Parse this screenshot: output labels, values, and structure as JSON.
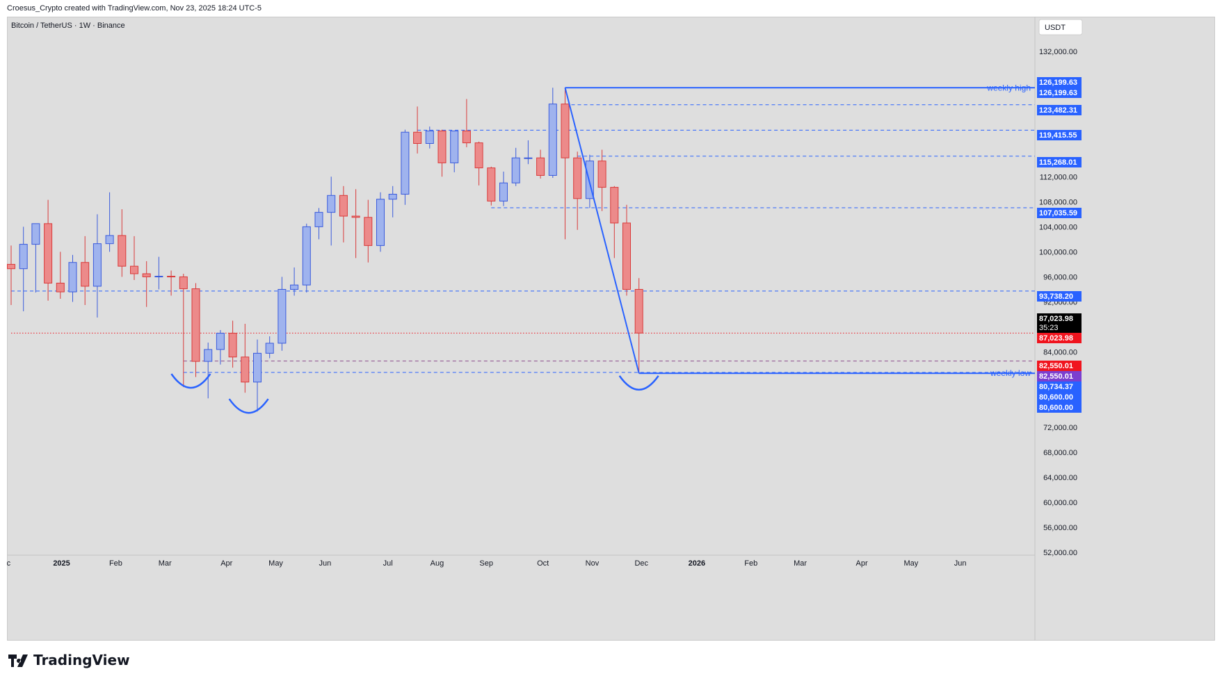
{
  "header": {
    "attribution": "Croesus_Crypto created with TradingView.com, Nov 23, 2025 18:24 UTC-5"
  },
  "chart_title": "Bitcoin / TetherUS · 1W · Binance",
  "currency_button": "USDT",
  "footer_logo_text": "TradingView",
  "colors": {
    "background": "#dedede",
    "up_candle_fill": "#9fb3ee",
    "up_candle_border": "#3a5bdc",
    "down_candle_fill": "#ec8a8a",
    "down_candle_border": "#d93a3a",
    "line_blue": "#2962ff",
    "label_blue": "#2962ff",
    "label_red": "#f0141e",
    "label_black": "#000000",
    "label_purple": "#7b3fcf"
  },
  "chart_data": {
    "type": "candlestick",
    "interval": "1W",
    "symbol": "Bitcoin / TetherUS",
    "exchange": "Binance",
    "y_ticks": [
      132000,
      128000,
      124000,
      120000,
      116000,
      112000,
      108000,
      104000,
      100000,
      96000,
      92000,
      88000,
      84000,
      80000,
      76000,
      72000,
      68000,
      64000,
      60000,
      56000,
      52000
    ],
    "y_tick_labels": [
      "132,000.00",
      "",
      "",
      "",
      "",
      "112,000.00",
      "108,000.00",
      "104,000.00",
      "100,000.00",
      "96,000.00",
      "92,000.00",
      "",
      "84,000.00",
      "",
      "",
      "72,000.00",
      "68,000.00",
      "64,000.00",
      "60,000.00",
      "56,000.00",
      "52,000.00"
    ],
    "x_labels": [
      {
        "label": "Dec",
        "bold": false,
        "week": -0.6
      },
      {
        "label": "2025",
        "bold": true,
        "week": 4.1
      },
      {
        "label": "Feb",
        "bold": false,
        "week": 8.5
      },
      {
        "label": "Mar",
        "bold": false,
        "week": 12.5
      },
      {
        "label": "Apr",
        "bold": false,
        "week": 17.5
      },
      {
        "label": "May",
        "bold": false,
        "week": 21.5
      },
      {
        "label": "Jun",
        "bold": false,
        "week": 25.5
      },
      {
        "label": "Jul",
        "bold": false,
        "week": 30.6
      },
      {
        "label": "Aug",
        "bold": false,
        "week": 34.6
      },
      {
        "label": "Sep",
        "bold": false,
        "week": 38.6
      },
      {
        "label": "Oct",
        "bold": false,
        "week": 43.2
      },
      {
        "label": "Nov",
        "bold": false,
        "week": 47.2
      },
      {
        "label": "Dec",
        "bold": false,
        "week": 51.2
      },
      {
        "label": "2026",
        "bold": true,
        "week": 55.7
      },
      {
        "label": "Feb",
        "bold": false,
        "week": 60.1
      },
      {
        "label": "Mar",
        "bold": false,
        "week": 64.1
      },
      {
        "label": "Apr",
        "bold": false,
        "week": 69.1
      },
      {
        "label": "May",
        "bold": false,
        "week": 73.1
      },
      {
        "label": "Jun",
        "bold": false,
        "week": 77.1
      }
    ],
    "candles": [
      {
        "o": 98000,
        "h": 101000,
        "l": 91500,
        "c": 97300
      },
      {
        "o": 97300,
        "h": 104000,
        "l": 90500,
        "c": 101200
      },
      {
        "o": 101200,
        "h": 104500,
        "l": 93500,
        "c": 104500
      },
      {
        "o": 104500,
        "h": 108300,
        "l": 92200,
        "c": 95000
      },
      {
        "o": 95000,
        "h": 100000,
        "l": 92500,
        "c": 93600
      },
      {
        "o": 93600,
        "h": 99500,
        "l": 92000,
        "c": 98300
      },
      {
        "o": 98300,
        "h": 102500,
        "l": 91500,
        "c": 94500
      },
      {
        "o": 94500,
        "h": 106000,
        "l": 89500,
        "c": 101300
      },
      {
        "o": 101300,
        "h": 109500,
        "l": 100000,
        "c": 102600
      },
      {
        "o": 102600,
        "h": 106800,
        "l": 96000,
        "c": 97700
      },
      {
        "o": 97700,
        "h": 102500,
        "l": 95500,
        "c": 96500
      },
      {
        "o": 96500,
        "h": 98500,
        "l": 91200,
        "c": 96000
      },
      {
        "o": 96000,
        "h": 99200,
        "l": 94000,
        "c": 96100
      },
      {
        "o": 96100,
        "h": 97000,
        "l": 93000,
        "c": 96000
      },
      {
        "o": 96000,
        "h": 96500,
        "l": 78400,
        "c": 94100
      },
      {
        "o": 94100,
        "h": 95000,
        "l": 80000,
        "c": 82500
      },
      {
        "o": 82500,
        "h": 85500,
        "l": 76600,
        "c": 84400
      },
      {
        "o": 84400,
        "h": 87500,
        "l": 82000,
        "c": 87000
      },
      {
        "o": 87000,
        "h": 89000,
        "l": 81500,
        "c": 83200
      },
      {
        "o": 83200,
        "h": 88500,
        "l": 77500,
        "c": 79200
      },
      {
        "o": 79200,
        "h": 86000,
        "l": 74500,
        "c": 83800
      },
      {
        "o": 83800,
        "h": 86500,
        "l": 83000,
        "c": 85400
      },
      {
        "o": 85400,
        "h": 96000,
        "l": 84200,
        "c": 94000
      },
      {
        "o": 94000,
        "h": 97500,
        "l": 93000,
        "c": 94700
      },
      {
        "o": 94700,
        "h": 104500,
        "l": 93500,
        "c": 104000
      },
      {
        "o": 104000,
        "h": 107000,
        "l": 102000,
        "c": 106300
      },
      {
        "o": 106300,
        "h": 112000,
        "l": 101000,
        "c": 109000
      },
      {
        "o": 109000,
        "h": 110500,
        "l": 101500,
        "c": 105700
      },
      {
        "o": 105700,
        "h": 110000,
        "l": 99000,
        "c": 105500
      },
      {
        "o": 105500,
        "h": 108300,
        "l": 98300,
        "c": 101000
      },
      {
        "o": 101000,
        "h": 109500,
        "l": 100000,
        "c": 108400
      },
      {
        "o": 108400,
        "h": 110500,
        "l": 105500,
        "c": 109200
      },
      {
        "o": 109200,
        "h": 119500,
        "l": 107500,
        "c": 119100
      },
      {
        "o": 119100,
        "h": 123200,
        "l": 115700,
        "c": 117300
      },
      {
        "o": 117300,
        "h": 120000,
        "l": 116500,
        "c": 119300
      },
      {
        "o": 119300,
        "h": 119500,
        "l": 112000,
        "c": 114200
      },
      {
        "o": 114200,
        "h": 119300,
        "l": 112700,
        "c": 119300
      },
      {
        "o": 119300,
        "h": 124400,
        "l": 116700,
        "c": 117400
      },
      {
        "o": 117400,
        "h": 117600,
        "l": 110600,
        "c": 113400
      },
      {
        "o": 113400,
        "h": 113600,
        "l": 107400,
        "c": 108100
      },
      {
        "o": 108100,
        "h": 112800,
        "l": 107300,
        "c": 111000
      },
      {
        "o": 111000,
        "h": 116600,
        "l": 110500,
        "c": 115000
      },
      {
        "o": 115000,
        "h": 117800,
        "l": 114000,
        "c": 115000
      },
      {
        "o": 115000,
        "h": 116300,
        "l": 111700,
        "c": 112200
      },
      {
        "o": 112200,
        "h": 126199.63,
        "l": 111800,
        "c": 123600
      },
      {
        "o": 123600,
        "h": 126199.63,
        "l": 102000,
        "c": 115000
      },
      {
        "o": 115000,
        "h": 116000,
        "l": 103500,
        "c": 108500
      },
      {
        "o": 108500,
        "h": 115500,
        "l": 107000,
        "c": 114500
      },
      {
        "o": 114500,
        "h": 116300,
        "l": 106500,
        "c": 110300
      },
      {
        "o": 110300,
        "h": 110500,
        "l": 99000,
        "c": 104600
      },
      {
        "o": 104600,
        "h": 107500,
        "l": 93000,
        "c": 94000
      },
      {
        "o": 94000,
        "h": 95800,
        "l": 80600,
        "c": 87024
      }
    ],
    "horizontal_levels": [
      {
        "price": 126199.63,
        "label": "126,199.63",
        "style": "solid",
        "color": "#2962ff",
        "start_week": 45,
        "text": "weekly high"
      },
      {
        "price": 123482.31,
        "label": "123,482.31",
        "style": "dashed",
        "color": "#2962ff",
        "start_week": 45
      },
      {
        "price": 119415.55,
        "label": "119,415.55",
        "style": "dashed",
        "color": "#2962ff",
        "start_week": 33
      },
      {
        "price": 115268.01,
        "label": "115,268.01",
        "style": "dashed",
        "color": "#2962ff",
        "start_week": 46
      },
      {
        "price": 107035.59,
        "label": "107,035.59",
        "style": "dashed",
        "color": "#2962ff",
        "start_week": 39
      },
      {
        "price": 93738.2,
        "label": "93,738.20",
        "style": "dashed",
        "color": "#2962ff",
        "start_week": 0
      },
      {
        "price": 87023.98,
        "label": "87,023.98",
        "style": "dotted",
        "color": "#f0141e",
        "start_week": 0
      },
      {
        "price": 82550.01,
        "label": "82,550.01",
        "style": "dashed",
        "color": "#8b4a8b",
        "start_week": 14
      },
      {
        "price": 80600.0,
        "label": "80,600.00",
        "style": "solid",
        "color": "#2962ff",
        "start_week": 51,
        "text": "weekly low"
      },
      {
        "price": 80734.37,
        "label": "80,734.37",
        "style": "dashed",
        "color": "#2962ff",
        "start_week": 14
      }
    ],
    "price_labels": [
      {
        "text": "126,199.63",
        "bg": "#2962ff"
      },
      {
        "text": "126,199.63",
        "bg": "#2962ff"
      },
      {
        "text": "123,482.31",
        "bg": "#2962ff"
      },
      {
        "text": "119,415.55",
        "bg": "#2962ff"
      },
      {
        "text": "115,268.01",
        "bg": "#2962ff"
      },
      {
        "text": "107,035.59",
        "bg": "#2962ff"
      },
      {
        "text": "93,738.20",
        "bg": "#2962ff"
      },
      {
        "text": "87,023.98",
        "sub": "35:23",
        "bg": "#000000"
      },
      {
        "text": "87,023.98",
        "bg": "#f0141e"
      },
      {
        "text": "82,550.01",
        "bg": "#f0141e"
      },
      {
        "text": "82,550.01",
        "bg": "#7b3fcf"
      },
      {
        "text": "80,734.37",
        "bg": "#2962ff"
      },
      {
        "text": "80,600.00",
        "bg": "#2962ff"
      },
      {
        "text": "80,600.00",
        "bg": "#2962ff"
      }
    ],
    "annotations": [
      {
        "type": "trendline",
        "from": {
          "week": 45,
          "price": 126199.63
        },
        "to": {
          "week": 51,
          "price": 80600
        }
      },
      {
        "type": "arc",
        "week": 14.6,
        "price": 80500
      },
      {
        "type": "arc",
        "week": 19.3,
        "price": 76500
      },
      {
        "type": "arc",
        "week": 51,
        "price": 80200
      }
    ]
  }
}
